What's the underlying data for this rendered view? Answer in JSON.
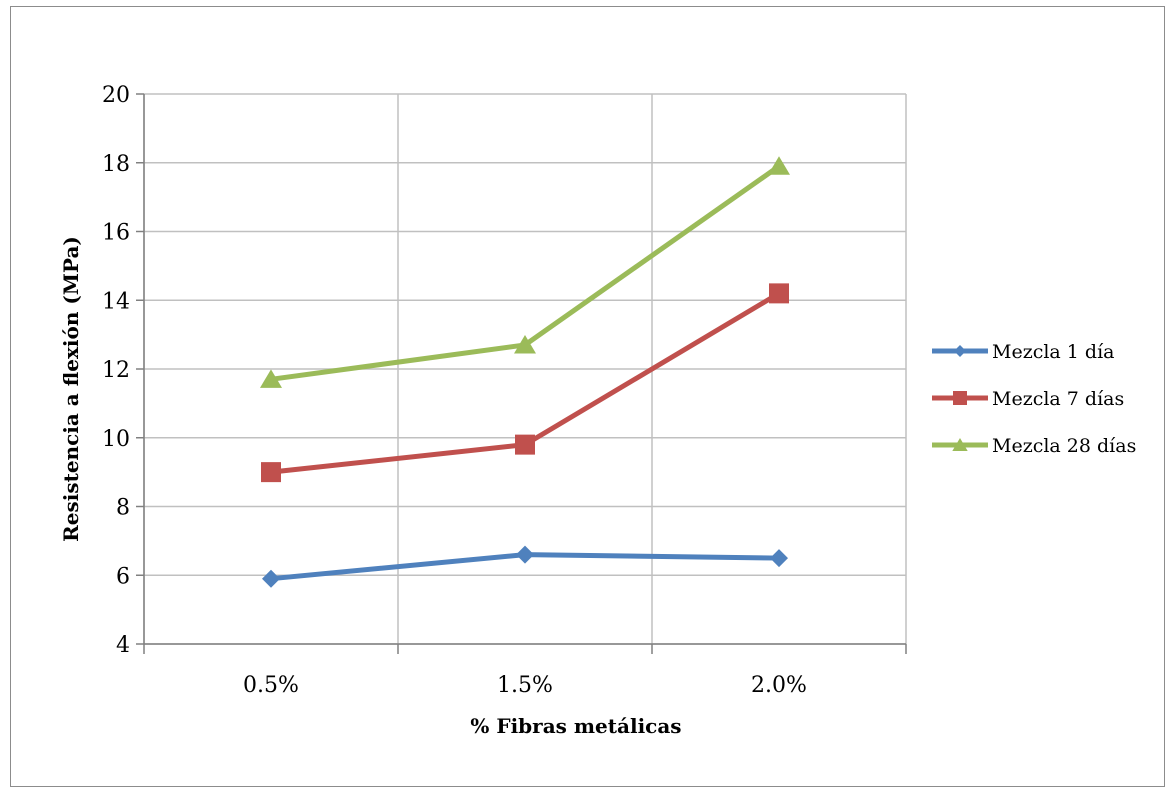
{
  "chart_data": {
    "type": "line",
    "title": "",
    "xlabel": "% Fibras metálicas",
    "ylabel": "Resistencia a flexión (MPa)",
    "categories": [
      "0.5%",
      "1.5%",
      "2.0%"
    ],
    "ylim": [
      4,
      20
    ],
    "yticks": [
      "4",
      "6",
      "8",
      "10",
      "12",
      "14",
      "16",
      "18",
      "20"
    ],
    "grid": true,
    "legend_position": "right",
    "series": [
      {
        "name": "Mezcla 1 día",
        "values": [
          5.9,
          6.6,
          6.5
        ],
        "color": "#4f81bd",
        "marker": "diamond"
      },
      {
        "name": "Mezcla 7 días",
        "values": [
          9.0,
          9.8,
          14.2
        ],
        "color": "#c0504d",
        "marker": "square"
      },
      {
        "name": "Mezcla 28 días",
        "values": [
          11.7,
          12.7,
          17.9
        ],
        "color": "#9bbb59",
        "marker": "triangle"
      }
    ]
  }
}
